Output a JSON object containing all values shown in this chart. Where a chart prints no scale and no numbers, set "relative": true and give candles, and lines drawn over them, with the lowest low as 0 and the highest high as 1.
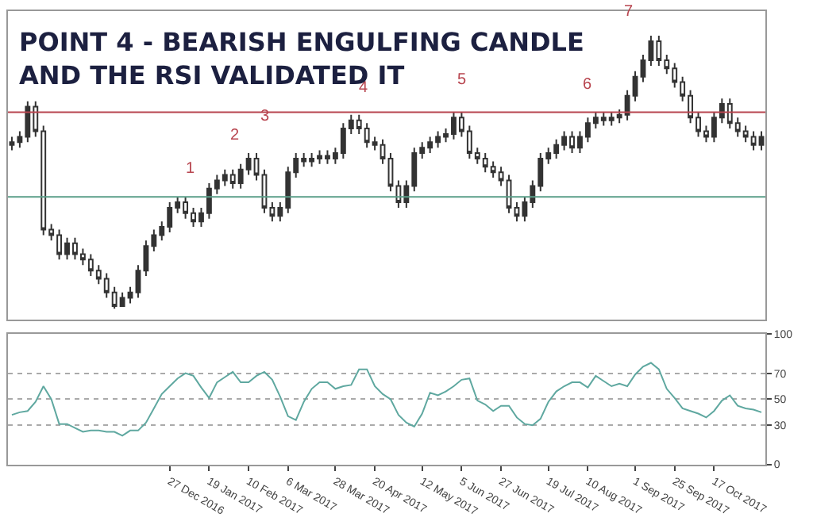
{
  "chart_data": [
    {
      "type": "candlestick",
      "title": "POINT 4 - BEARISH ENGULFING CANDLE AND THE RSI VALIDATED IT",
      "relative": true,
      "color": "#333333",
      "grid": false,
      "categories": [
        null,
        null,
        null,
        null,
        null,
        null,
        null,
        null,
        null,
        null,
        null,
        null,
        null,
        null,
        null,
        null,
        null,
        null,
        null,
        null,
        null,
        null,
        null,
        null,
        null,
        null,
        null,
        null,
        null,
        null,
        null,
        null,
        null,
        null,
        null,
        null,
        null,
        null,
        null,
        null,
        null,
        null,
        null,
        null,
        null,
        null,
        null,
        null,
        null,
        null,
        null,
        null,
        null,
        null,
        null,
        null,
        null,
        null,
        null,
        null,
        null,
        null,
        null,
        null,
        null,
        null,
        null,
        null,
        null,
        null,
        null,
        null,
        null,
        null,
        null,
        null,
        null,
        null,
        null,
        null,
        null,
        null,
        null,
        null,
        null,
        null,
        null,
        null,
        null,
        null,
        null,
        null,
        null,
        null,
        null,
        null
      ],
      "ohlc": [
        [
          0.6,
          0.63,
          0.58,
          0.61
        ],
        [
          0.61,
          0.65,
          0.59,
          0.63
        ],
        [
          0.63,
          0.76,
          0.61,
          0.74
        ],
        [
          0.74,
          0.76,
          0.63,
          0.65
        ],
        [
          0.65,
          0.67,
          0.27,
          0.29
        ],
        [
          0.29,
          0.31,
          0.25,
          0.27
        ],
        [
          0.27,
          0.29,
          0.18,
          0.2
        ],
        [
          0.2,
          0.26,
          0.18,
          0.24
        ],
        [
          0.24,
          0.26,
          0.18,
          0.2
        ],
        [
          0.2,
          0.22,
          0.16,
          0.18
        ],
        [
          0.18,
          0.2,
          0.12,
          0.14
        ],
        [
          0.14,
          0.16,
          0.09,
          0.11
        ],
        [
          0.11,
          0.13,
          0.04,
          0.06
        ],
        [
          0.06,
          0.08,
          0,
          0.01
        ],
        [
          0.01,
          0.06,
          0.01,
          0.04
        ],
        [
          0.04,
          0.08,
          0.02,
          0.06
        ],
        [
          0.06,
          0.16,
          0.04,
          0.14
        ],
        [
          0.14,
          0.25,
          0.12,
          0.23
        ],
        [
          0.23,
          0.29,
          0.21,
          0.27
        ],
        [
          0.27,
          0.32,
          0.25,
          0.3
        ],
        [
          0.3,
          0.39,
          0.28,
          0.37
        ],
        [
          0.37,
          0.41,
          0.35,
          0.39
        ],
        [
          0.39,
          0.41,
          0.33,
          0.35
        ],
        [
          0.35,
          0.37,
          0.3,
          0.32
        ],
        [
          0.32,
          0.37,
          0.3,
          0.35
        ],
        [
          0.35,
          0.46,
          0.33,
          0.44
        ],
        [
          0.44,
          0.49,
          0.42,
          0.47
        ],
        [
          0.47,
          0.51,
          0.45,
          0.49
        ],
        [
          0.49,
          0.51,
          0.44,
          0.46
        ],
        [
          0.46,
          0.53,
          0.44,
          0.51
        ],
        [
          0.51,
          0.57,
          0.49,
          0.55
        ],
        [
          0.55,
          0.57,
          0.47,
          0.49
        ],
        [
          0.49,
          0.51,
          0.35,
          0.37
        ],
        [
          0.37,
          0.39,
          0.32,
          0.34
        ],
        [
          0.34,
          0.39,
          0.32,
          0.37
        ],
        [
          0.37,
          0.52,
          0.35,
          0.5
        ],
        [
          0.5,
          0.57,
          0.48,
          0.55
        ],
        [
          0.55,
          0.57,
          0.52,
          0.54
        ],
        [
          0.54,
          0.57,
          0.52,
          0.55
        ],
        [
          0.55,
          0.58,
          0.53,
          0.56
        ],
        [
          0.56,
          0.58,
          0.53,
          0.55
        ],
        [
          0.55,
          0.59,
          0.53,
          0.57
        ],
        [
          0.57,
          0.68,
          0.55,
          0.66
        ],
        [
          0.66,
          0.71,
          0.64,
          0.69
        ],
        [
          0.69,
          0.71,
          0.64,
          0.66
        ],
        [
          0.66,
          0.68,
          0.59,
          0.61
        ],
        [
          0.61,
          0.63,
          0.58,
          0.6
        ],
        [
          0.6,
          0.62,
          0.53,
          0.55
        ],
        [
          0.55,
          0.57,
          0.43,
          0.45
        ],
        [
          0.45,
          0.47,
          0.37,
          0.39
        ],
        [
          0.39,
          0.47,
          0.37,
          0.45
        ],
        [
          0.45,
          0.59,
          0.43,
          0.57
        ],
        [
          0.57,
          0.61,
          0.55,
          0.59
        ],
        [
          0.59,
          0.63,
          0.57,
          0.61
        ],
        [
          0.61,
          0.65,
          0.59,
          0.63
        ],
        [
          0.63,
          0.66,
          0.61,
          0.64
        ],
        [
          0.64,
          0.72,
          0.62,
          0.7
        ],
        [
          0.7,
          0.72,
          0.63,
          0.65
        ],
        [
          0.65,
          0.67,
          0.55,
          0.57
        ],
        [
          0.57,
          0.59,
          0.53,
          0.55
        ],
        [
          0.55,
          0.57,
          0.5,
          0.52
        ],
        [
          0.52,
          0.54,
          0.48,
          0.5
        ],
        [
          0.5,
          0.52,
          0.45,
          0.47
        ],
        [
          0.47,
          0.49,
          0.35,
          0.37
        ],
        [
          0.37,
          0.39,
          0.32,
          0.34
        ],
        [
          0.34,
          0.41,
          0.32,
          0.39
        ],
        [
          0.39,
          0.47,
          0.37,
          0.45
        ],
        [
          0.45,
          0.57,
          0.43,
          0.55
        ],
        [
          0.55,
          0.59,
          0.53,
          0.57
        ],
        [
          0.57,
          0.62,
          0.55,
          0.6
        ],
        [
          0.6,
          0.65,
          0.58,
          0.63
        ],
        [
          0.63,
          0.65,
          0.57,
          0.59
        ],
        [
          0.59,
          0.65,
          0.57,
          0.63
        ],
        [
          0.63,
          0.7,
          0.61,
          0.68
        ],
        [
          0.68,
          0.72,
          0.66,
          0.7
        ],
        [
          0.7,
          0.72,
          0.67,
          0.69
        ],
        [
          0.69,
          0.72,
          0.67,
          0.7
        ],
        [
          0.7,
          0.73,
          0.68,
          0.71
        ],
        [
          0.71,
          0.8,
          0.69,
          0.78
        ],
        [
          0.78,
          0.87,
          0.76,
          0.85
        ],
        [
          0.85,
          0.93,
          0.83,
          0.91
        ],
        [
          0.91,
          1,
          0.89,
          0.98
        ],
        [
          0.98,
          1,
          0.89,
          0.91
        ],
        [
          0.91,
          0.93,
          0.86,
          0.88
        ],
        [
          0.88,
          0.9,
          0.81,
          0.83
        ],
        [
          0.83,
          0.85,
          0.76,
          0.78
        ],
        [
          0.78,
          0.8,
          0.68,
          0.7
        ],
        [
          0.7,
          0.72,
          0.63,
          0.65
        ],
        [
          0.65,
          0.67,
          0.61,
          0.63
        ],
        [
          0.63,
          0.72,
          0.61,
          0.7
        ],
        [
          0.7,
          0.77,
          0.68,
          0.75
        ],
        [
          0.75,
          0.77,
          0.66,
          0.68
        ],
        [
          0.68,
          0.7,
          0.63,
          0.65
        ],
        [
          0.65,
          0.67,
          0.61,
          0.63
        ],
        [
          0.63,
          0.65,
          0.58,
          0.6
        ],
        [
          0.6,
          0.65,
          0.58,
          0.63
        ]
      ],
      "ref_lines": [
        {
          "axis": "y",
          "value": 0.72,
          "color": "#b8454f"
        },
        {
          "axis": "y",
          "value": 0.41,
          "color": "#5a9e88"
        }
      ],
      "annotations": [
        "1",
        "2",
        "3",
        "4",
        "5",
        "6",
        "7"
      ]
    },
    {
      "type": "line",
      "grid": "y",
      "line_style": "solid",
      "marker": "none",
      "categories": [
        null,
        null,
        null,
        null,
        null,
        null,
        null,
        null,
        null,
        null,
        null,
        null,
        null,
        null,
        null,
        null,
        null,
        null,
        null,
        null,
        "27 Dec 2016",
        null,
        null,
        null,
        null,
        "19 Jan 2017",
        null,
        null,
        null,
        null,
        "10 Feb 2017",
        null,
        null,
        null,
        null,
        "6 Mar 2017",
        null,
        null,
        null,
        null,
        null,
        "28 Mar 2017",
        null,
        null,
        null,
        null,
        "20 Apr 2017",
        null,
        null,
        null,
        null,
        null,
        "12 May 2017",
        null,
        null,
        null,
        null,
        "5 Jun 2017",
        null,
        null,
        null,
        null,
        "27 Jun 2017",
        null,
        null,
        null,
        null,
        null,
        "19 Jul 2017",
        null,
        null,
        null,
        null,
        "10 Aug 2017",
        null,
        null,
        null,
        null,
        null,
        "1 Sep 2017",
        null,
        null,
        null,
        null,
        "25 Sep 2017",
        null,
        null,
        null,
        null,
        "17 Oct 2017",
        null,
        null,
        null,
        null,
        null,
        null
      ],
      "series": [
        {
          "color": "#5fa8a0",
          "values": [
            38,
            40,
            41,
            48,
            60,
            50,
            31,
            31,
            28,
            25,
            26,
            26,
            25,
            25,
            22,
            26,
            26,
            32,
            43,
            54,
            60,
            66,
            70,
            68,
            59,
            51,
            63,
            67,
            71,
            63,
            63,
            68,
            71,
            65,
            52,
            37,
            34,
            48,
            58,
            63,
            63,
            58,
            60,
            61,
            73,
            73,
            60,
            54,
            50,
            38,
            32,
            29,
            39,
            55,
            53,
            56,
            60,
            65,
            66,
            49,
            46,
            41,
            45,
            45,
            36,
            31,
            30,
            35,
            48,
            56,
            60,
            63,
            63,
            59,
            68,
            64,
            60,
            62,
            60,
            69,
            75,
            78,
            73,
            58,
            51,
            43,
            41,
            39,
            36,
            41,
            49,
            53,
            45,
            43,
            42,
            40
          ]
        }
      ],
      "ylim": [
        0,
        100
      ],
      "yticks": [
        0,
        30,
        50,
        70,
        100
      ]
    }
  ]
}
